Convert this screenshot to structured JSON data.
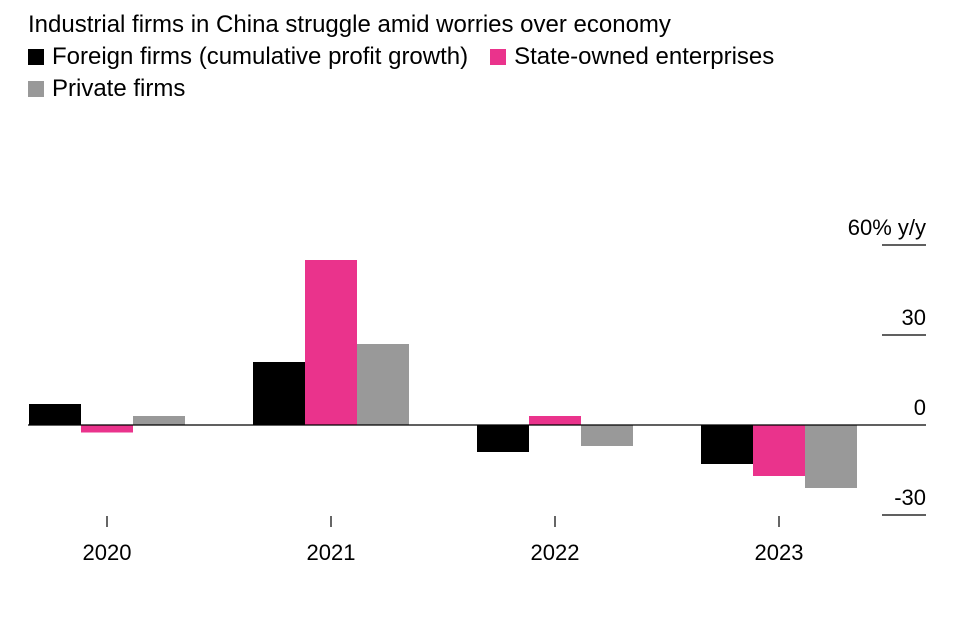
{
  "chart_data": {
    "type": "bar",
    "title": "Industrial firms in China struggle amid worries over economy",
    "categories": [
      "2020",
      "2021",
      "2022",
      "2023"
    ],
    "series": [
      {
        "name": "Foreign firms (cumulative profit growth)",
        "color": "#000000",
        "values": [
          7,
          21,
          -9,
          -13
        ]
      },
      {
        "name": "State-owned enterprises",
        "color": "#ea338c",
        "values": [
          -2.5,
          55,
          3,
          -17
        ]
      },
      {
        "name": "Private firms",
        "color": "#999999",
        "values": [
          3,
          27,
          -7,
          -21
        ]
      }
    ],
    "ylim": [
      -30,
      60
    ],
    "yticks": [
      {
        "value": 60,
        "label": "60% y/y"
      },
      {
        "value": 30,
        "label": "30"
      },
      {
        "value": 0,
        "label": "0"
      },
      {
        "value": -30,
        "label": "-30"
      }
    ],
    "ylabel": "",
    "xlabel": "",
    "grid": false,
    "legend_position": "top-left"
  }
}
